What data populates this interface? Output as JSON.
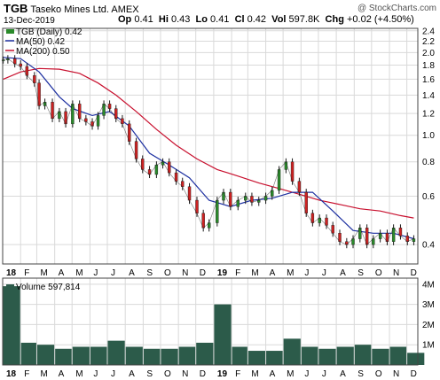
{
  "header": {
    "symbol": "TGB",
    "company": "Taseko Mines Ltd.",
    "exchange": "AMEX",
    "date": "13-Dec-2019",
    "open_label": "Op",
    "open": "0.41",
    "high_label": "Hi",
    "high": "0.43",
    "low_label": "Lo",
    "low": "0.41",
    "close_label": "Cl",
    "close": "0.42",
    "vol_label": "Vol",
    "vol": "597.8K",
    "chg_label": "Chg",
    "chg": "+0.02 (+4.50%)",
    "watermark": "@ StockCharts.com"
  },
  "legend": {
    "price": "TGB (Daily) 0.42",
    "ma50": "MA(50) 0.42",
    "ma200": "MA(200) 0.50",
    "volume": "Volume 597,814"
  },
  "colors": {
    "price": "#1a1a1a",
    "candle_up": "#2a8a2a",
    "candle_down": "#cc2222",
    "ma50": "#1c2fa0",
    "ma200": "#c8102e",
    "volume": "#2c5b4a",
    "grid": "#d9d9d9",
    "frame": "#444444"
  },
  "chart_data": [
    {
      "type": "line",
      "title": "TGB Taseko Mines Ltd. AMEX",
      "y_scale": "log",
      "ylim": [
        0.34,
        2.45
      ],
      "y_ticks": [
        0.4,
        0.6,
        0.8,
        1.0,
        1.2,
        1.4,
        1.6,
        1.8,
        2.0,
        2.2,
        2.4
      ],
      "x_ticks": [
        "18",
        "F",
        "M",
        "A",
        "M",
        "J",
        "J",
        "A",
        "S",
        "O",
        "N",
        "D",
        "19",
        "F",
        "M",
        "A",
        "M",
        "J",
        "J",
        "A",
        "S",
        "O",
        "N",
        "D"
      ],
      "series": [
        {
          "name": "TGB (Daily) 0.42",
          "x": [
            "2018-01-02",
            "2018-01-10",
            "2018-01-22",
            "2018-02-01",
            "2018-02-12",
            "2018-02-25",
            "2018-03-05",
            "2018-03-15",
            "2018-03-28",
            "2018-04-09",
            "2018-04-20",
            "2018-05-02",
            "2018-05-14",
            "2018-05-25",
            "2018-06-05",
            "2018-06-15",
            "2018-06-25",
            "2018-07-05",
            "2018-07-16",
            "2018-07-27",
            "2018-08-08",
            "2018-08-20",
            "2018-08-31",
            "2018-09-12",
            "2018-09-24",
            "2018-10-05",
            "2018-10-16",
            "2018-10-28",
            "2018-11-08",
            "2018-11-20",
            "2018-12-03",
            "2018-12-14",
            "2018-12-24",
            "2019-01-07",
            "2019-01-18",
            "2019-01-30",
            "2019-02-12",
            "2019-02-25",
            "2019-03-08",
            "2019-03-20",
            "2019-04-01",
            "2019-04-12",
            "2019-04-24",
            "2019-05-06",
            "2019-05-17",
            "2019-05-29",
            "2019-06-10",
            "2019-06-21",
            "2019-07-03",
            "2019-07-15",
            "2019-07-26",
            "2019-08-07",
            "2019-08-19",
            "2019-08-30",
            "2019-09-11",
            "2019-09-23",
            "2019-10-04",
            "2019-10-16",
            "2019-10-28",
            "2019-11-08",
            "2019-11-20",
            "2019-12-02",
            "2019-12-13"
          ],
          "y": [
            1.88,
            1.9,
            1.82,
            1.78,
            1.65,
            1.55,
            1.28,
            1.32,
            1.15,
            1.22,
            1.1,
            1.3,
            1.15,
            1.12,
            1.08,
            1.18,
            1.3,
            1.25,
            1.15,
            1.1,
            0.95,
            0.82,
            0.75,
            0.72,
            0.78,
            0.8,
            0.73,
            0.68,
            0.65,
            0.58,
            0.52,
            0.46,
            0.48,
            0.58,
            0.62,
            0.55,
            0.58,
            0.6,
            0.57,
            0.58,
            0.6,
            0.63,
            0.75,
            0.8,
            0.68,
            0.62,
            0.52,
            0.48,
            0.5,
            0.47,
            0.44,
            0.41,
            0.4,
            0.42,
            0.46,
            0.4,
            0.42,
            0.44,
            0.41,
            0.46,
            0.43,
            0.41,
            0.42
          ]
        },
        {
          "name": "MA(50) 0.42",
          "x": [
            "2018-01-02",
            "2018-02-01",
            "2018-03-05",
            "2018-04-09",
            "2018-05-02",
            "2018-06-05",
            "2018-07-05",
            "2018-08-08",
            "2018-09-12",
            "2018-10-16",
            "2018-11-20",
            "2018-12-24",
            "2019-01-30",
            "2019-03-08",
            "2019-04-12",
            "2019-05-17",
            "2019-06-21",
            "2019-07-26",
            "2019-08-30",
            "2019-10-04",
            "2019-11-08",
            "2019-12-13"
          ],
          "y": [
            1.92,
            1.9,
            1.7,
            1.38,
            1.25,
            1.18,
            1.22,
            1.08,
            0.86,
            0.78,
            0.7,
            0.58,
            0.55,
            0.58,
            0.59,
            0.62,
            0.62,
            0.53,
            0.45,
            0.44,
            0.44,
            0.42
          ]
        },
        {
          "name": "MA(200) 0.50",
          "x": [
            "2018-01-02",
            "2018-02-01",
            "2018-03-05",
            "2018-04-09",
            "2018-05-14",
            "2018-06-15",
            "2018-07-16",
            "2018-08-20",
            "2018-09-24",
            "2018-10-28",
            "2018-12-03",
            "2019-01-07",
            "2019-02-12",
            "2019-03-20",
            "2019-04-24",
            "2019-05-29",
            "2019-07-03",
            "2019-08-07",
            "2019-09-11",
            "2019-10-16",
            "2019-11-20",
            "2019-12-13"
          ],
          "y": [
            1.6,
            1.7,
            1.75,
            1.74,
            1.68,
            1.55,
            1.4,
            1.22,
            1.05,
            0.92,
            0.82,
            0.75,
            0.71,
            0.67,
            0.64,
            0.61,
            0.58,
            0.56,
            0.54,
            0.53,
            0.51,
            0.5
          ]
        }
      ]
    },
    {
      "type": "bar",
      "title": "Volume 597,814",
      "ylim": [
        0,
        4.3
      ],
      "y_ticks": [
        1,
        2,
        3,
        4
      ],
      "y_tick_labels": [
        "1M",
        "2M",
        "3M",
        "4M"
      ],
      "x_ticks": [
        "18",
        "F",
        "M",
        "A",
        "M",
        "J",
        "J",
        "A",
        "S",
        "O",
        "N",
        "D",
        "19",
        "F",
        "M",
        "A",
        "M",
        "J",
        "J",
        "A",
        "S",
        "O",
        "N",
        "D"
      ],
      "series": [
        {
          "name": "Volume 597,814",
          "x": [
            "2018-01",
            "2018-02",
            "2018-03",
            "2018-04",
            "2018-05",
            "2018-06",
            "2018-07",
            "2018-08",
            "2018-09",
            "2018-10",
            "2018-11",
            "2018-12",
            "2019-01",
            "2019-02",
            "2019-03",
            "2019-04",
            "2019-05",
            "2019-06",
            "2019-07",
            "2019-08",
            "2019-09",
            "2019-10",
            "2019-11",
            "2019-12"
          ],
          "values": [
            3.9,
            1.1,
            1.0,
            0.8,
            0.9,
            0.9,
            1.2,
            0.9,
            0.8,
            0.8,
            0.9,
            1.1,
            3.0,
            0.9,
            0.7,
            0.7,
            1.3,
            0.9,
            0.8,
            0.9,
            1.0,
            0.8,
            0.9,
            0.6
          ]
        }
      ]
    }
  ]
}
